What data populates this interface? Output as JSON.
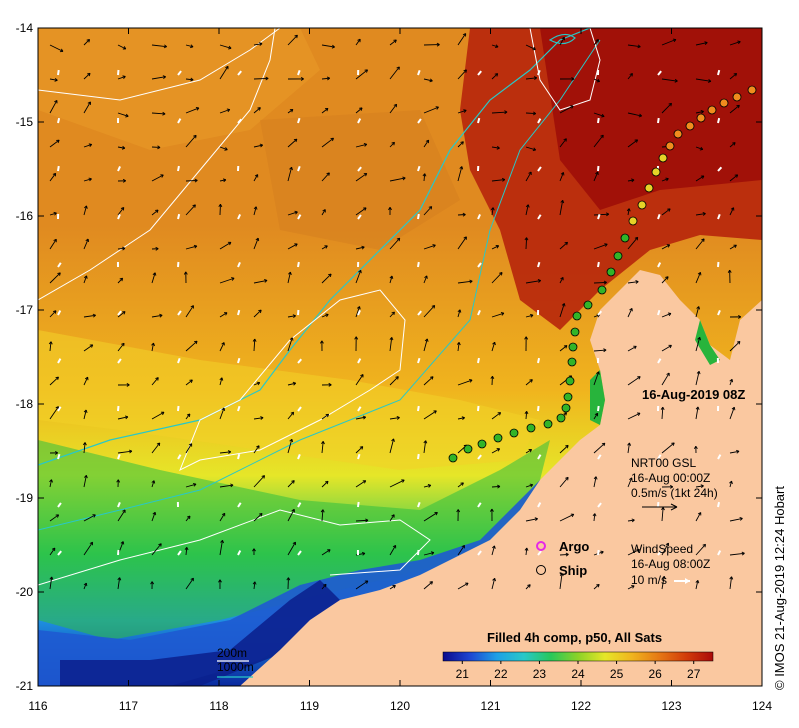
{
  "map": {
    "date_stamp": "16-Aug-2019 08Z",
    "product_title": "Filled 4h comp, p50, All Sats",
    "credit": "© IMOS 21-Aug-2019 12:24 Hobart",
    "x_ticks": [
      "116",
      "117",
      "118",
      "119",
      "120",
      "121",
      "122",
      "123",
      "124"
    ],
    "y_ticks": [
      "-14",
      "-15",
      "-16",
      "-17",
      "-18",
      "-19",
      "-20",
      "-21"
    ],
    "colorbar": {
      "ticks": [
        "21",
        "22",
        "23",
        "24",
        "25",
        "26",
        "27"
      ],
      "min": 20.5,
      "max": 27.5,
      "colors": [
        "#0a0a8c",
        "#1e46d2",
        "#1ea0e6",
        "#28c8c8",
        "#28c85a",
        "#8cd228",
        "#e6e628",
        "#f0b41e",
        "#e67814",
        "#d23c0a",
        "#aa0a0a"
      ]
    },
    "current_legend": {
      "line1": "NRT00 GSL",
      "line2": "16-Aug 00:00Z",
      "line3": "0.5m/s (1kt 24h)"
    },
    "wind_legend": {
      "line1": "WindSpeed",
      "line2": "16-Aug 08:00Z",
      "line3": "10 m/s"
    },
    "obs_legend": {
      "argo": "Argo",
      "ship": "Ship"
    },
    "depth_legend": {
      "white_contour": "200m",
      "cyan_contour": "1000m"
    },
    "colors": {
      "land": "#fac8a0",
      "white_contour": "#ffffff",
      "cyan_contour": "#28c8c8",
      "argo_marker": "#e628e6"
    }
  }
}
